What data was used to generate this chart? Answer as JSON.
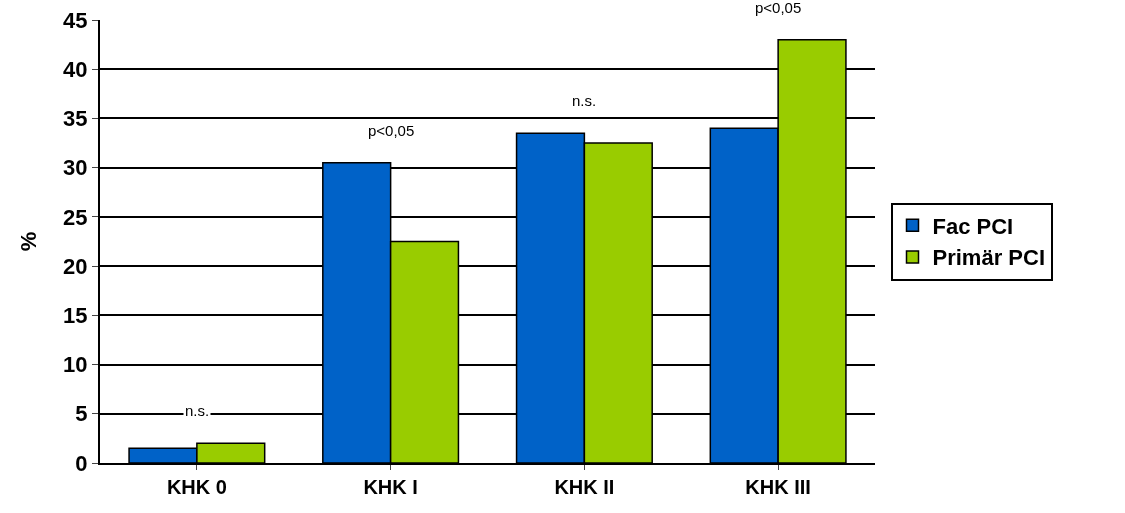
{
  "chart_data": {
    "type": "bar",
    "ylabel": "%",
    "categories": [
      "KHK 0",
      "KHK I",
      "KHK II",
      "KHK III"
    ],
    "series": [
      {
        "name": "Fac PCI",
        "color": "#0062c8",
        "values": [
          1.5,
          30.5,
          33.5,
          34
        ]
      },
      {
        "name": "Primär PCI",
        "color": "#99cc00",
        "values": [
          2,
          22.5,
          32.5,
          43
        ]
      }
    ],
    "ylim": [
      0,
      45
    ],
    "yticks": [
      0,
      5,
      10,
      15,
      20,
      25,
      30,
      35,
      40,
      45
    ],
    "grid": "y",
    "legend": "right",
    "annotations": [
      "n.s.",
      "p<0,05",
      "n.s.",
      "p<0,05"
    ]
  }
}
